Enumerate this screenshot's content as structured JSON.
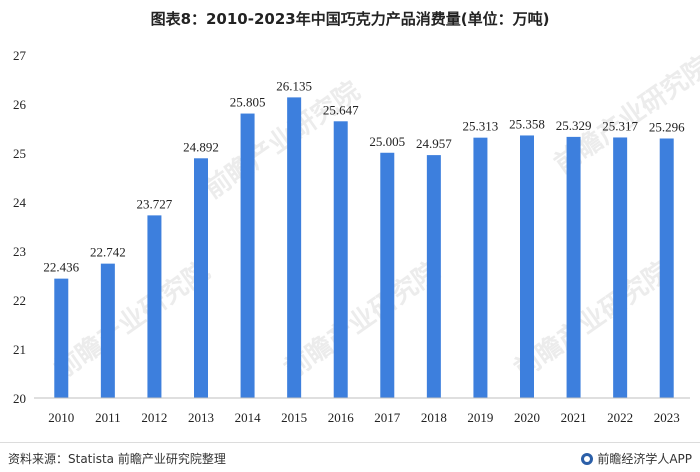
{
  "chart_data": {
    "type": "bar",
    "title": "图表8：2010-2023年中国巧克力产品消费量(单位：万吨)",
    "categories": [
      "2010",
      "2011",
      "2012",
      "2013",
      "2014",
      "2015",
      "2016",
      "2017",
      "2018",
      "2019",
      "2020",
      "2021",
      "2022",
      "2023"
    ],
    "values": [
      22.436,
      22.742,
      23.727,
      24.892,
      25.805,
      26.135,
      25.647,
      25.005,
      24.957,
      25.313,
      25.358,
      25.329,
      25.317,
      25.296
    ],
    "value_labels": [
      "22.436",
      "22.742",
      "23.727",
      "24.892",
      "25.805",
      "26.135",
      "25.647",
      "25.005",
      "24.957",
      "25.313",
      "25.358",
      "25.329",
      "25.317",
      "25.296"
    ],
    "ylim": [
      20,
      27
    ],
    "yticks": [
      20,
      21,
      22,
      23,
      24,
      25,
      26,
      27
    ],
    "bar_color": "#3d7fdd",
    "grid": false
  },
  "footer": {
    "source": "资料来源：Statista 前瞻产业研究院整理",
    "brand": "前瞻经济学人APP"
  },
  "watermark": "前瞻产业研究院"
}
